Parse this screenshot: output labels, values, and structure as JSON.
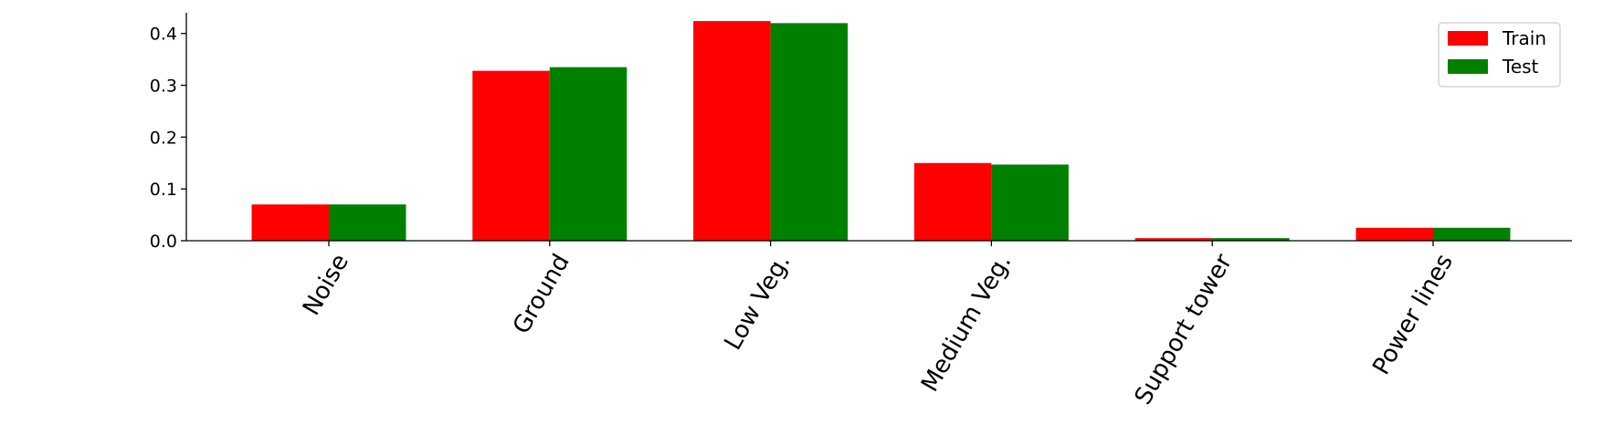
{
  "chart_data": {
    "type": "bar",
    "title": "",
    "xlabel": "",
    "ylabel": "",
    "categories": [
      "Noise",
      "Ground",
      "Low Veg.",
      "Medium Veg.",
      "Support tower",
      "Power lines"
    ],
    "series": [
      {
        "name": "Train",
        "color": "#ff0000",
        "values": [
          0.07,
          0.328,
          0.424,
          0.15,
          0.005,
          0.025
        ]
      },
      {
        "name": "Test",
        "color": "#008000",
        "values": [
          0.07,
          0.335,
          0.42,
          0.147,
          0.005,
          0.025
        ]
      }
    ],
    "ylim": [
      0,
      0.44
    ],
    "yticks": [
      "0.0",
      "0.1",
      "0.2",
      "0.3",
      "0.4"
    ],
    "ytick_values": [
      0.0,
      0.1,
      0.2,
      0.3,
      0.4
    ],
    "grid": false,
    "legend_position": "top-right",
    "xtick_rotation_deg": -60
  }
}
